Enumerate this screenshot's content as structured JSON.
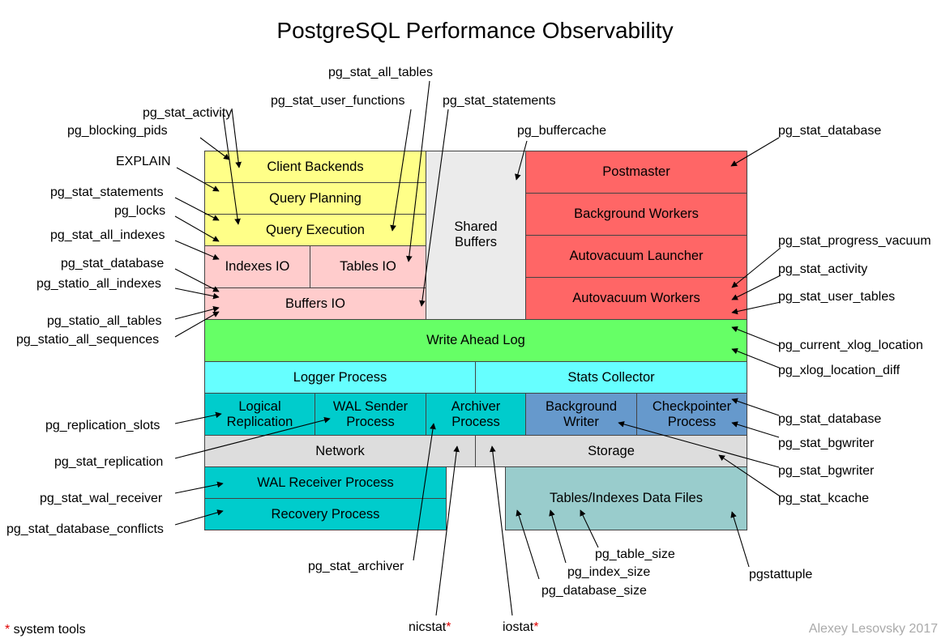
{
  "title": "PostgreSQL Performance Observability",
  "boxes": {
    "client_backends": "Client Backends",
    "query_planning": "Query Planning",
    "query_execution": "Query Execution",
    "indexes_io": "Indexes IO",
    "tables_io": "Tables IO",
    "buffers_io": "Buffers IO",
    "shared_buffers": "Shared\nBuffers",
    "postmaster": "Postmaster",
    "background_workers": "Background Workers",
    "autovacuum_launcher": "Autovacuum Launcher",
    "autovacuum_workers": "Autovacuum Workers",
    "wal": "Write Ahead Log",
    "logger": "Logger Process",
    "stats_collector": "Stats Collector",
    "logical_replication": "Logical\nReplication",
    "wal_sender": "WAL Sender\nProcess",
    "archiver": "Archiver\nProcess",
    "bg_writer": "Background\nWriter",
    "checkpointer": "Checkpointer\nProcess",
    "network": "Network",
    "storage": "Storage",
    "wal_receiver": "WAL Receiver Process",
    "recovery": "Recovery Process",
    "data_files": "Tables/Indexes Data Files"
  },
  "labels": {
    "pg_stat_all_tables": "pg_stat_all_tables",
    "pg_stat_user_functions": "pg_stat_user_functions",
    "pg_stat_statements_top": "pg_stat_statements",
    "pg_stat_activity_top": "pg_stat_activity",
    "pg_blocking_pids": "pg_blocking_pids",
    "pg_buffercache": "pg_buffercache",
    "pg_stat_database_top": "pg_stat_database",
    "explain": "EXPLAIN",
    "pg_stat_statements_left": "pg_stat_statements",
    "pg_locks": "pg_locks",
    "pg_stat_all_indexes": "pg_stat_all_indexes",
    "pg_stat_database_left": "pg_stat_database",
    "pg_statio_all_indexes": "pg_statio_all_indexes",
    "pg_statio_all_tables": "pg_statio_all_tables",
    "pg_statio_all_sequences": "pg_statio_all_sequences",
    "pg_replication_slots": "pg_replication_slots",
    "pg_stat_replication": "pg_stat_replication",
    "pg_stat_wal_receiver": "pg_stat_wal_receiver",
    "pg_stat_database_conflicts": "pg_stat_database_conflicts",
    "pg_stat_progress_vacuum": "pg_stat_progress_vacuum",
    "pg_stat_activity_right": "pg_stat_activity",
    "pg_stat_user_tables": "pg_stat_user_tables",
    "pg_current_xlog_location": "pg_current_xlog_location",
    "pg_xlog_location_diff": "pg_xlog_location_diff",
    "pg_stat_database_right": "pg_stat_database",
    "pg_stat_bgwriter_1": "pg_stat_bgwriter",
    "pg_stat_bgwriter_2": "pg_stat_bgwriter",
    "pg_stat_kcache": "pg_stat_kcache",
    "pg_stat_archiver": "pg_stat_archiver",
    "pg_table_size": "pg_table_size",
    "pg_index_size": "pg_index_size",
    "pg_database_size": "pg_database_size",
    "pgstattuple": "pgstattuple",
    "nicstat": "nicstat",
    "iostat": "iostat",
    "star": "*"
  },
  "footer": {
    "legend_star": "*",
    "legend_text": " system tools",
    "credit": "Alexey Lesovsky 2017"
  },
  "colors": {
    "yellow": "#ffff88",
    "pink": "#ffcccc",
    "gray": "#ebebeb",
    "red": "#ff6666",
    "green": "#66ff66",
    "cyan": "#66ffff",
    "teal": "#00cccc",
    "steel_blue": "#6699cc",
    "light_gray": "#dddddd",
    "gray_teal": "#99cccc"
  }
}
